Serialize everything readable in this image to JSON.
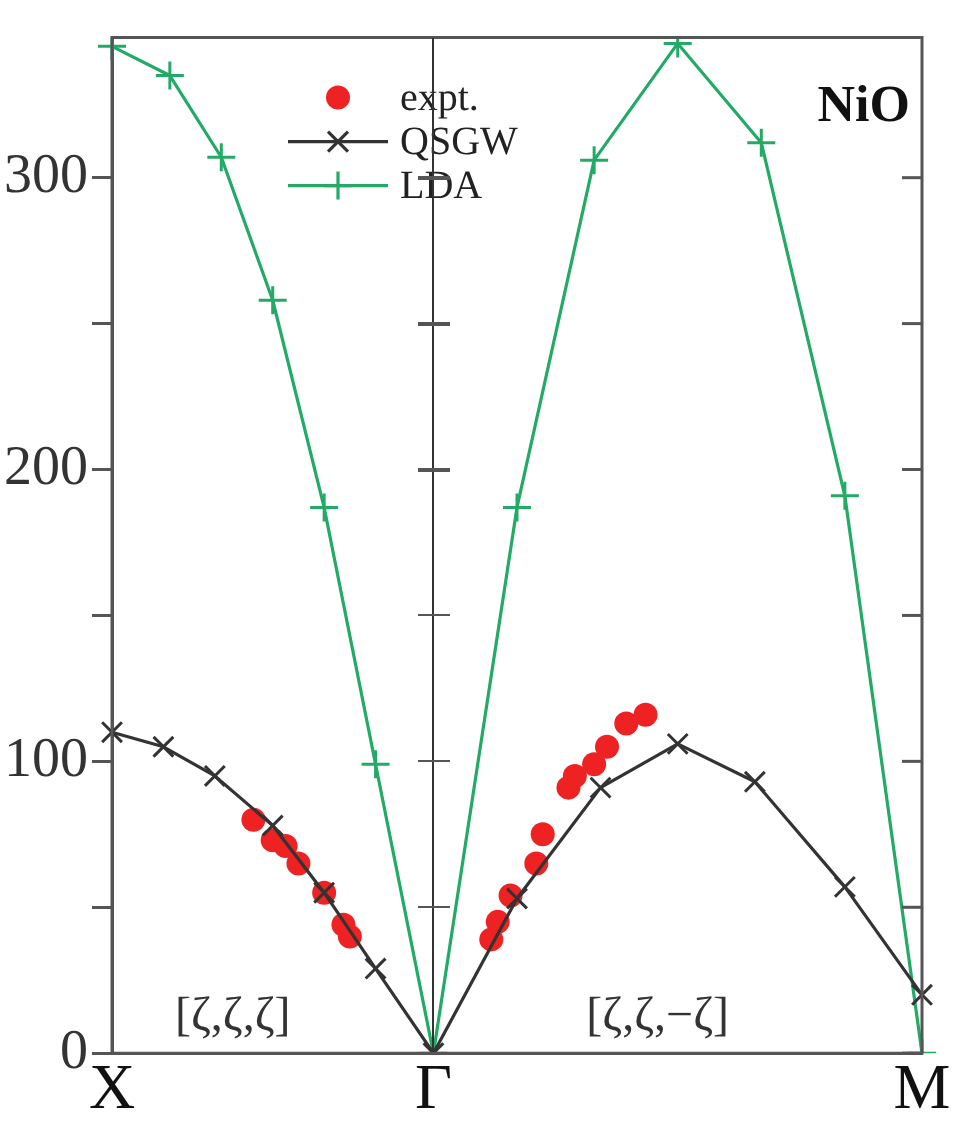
{
  "chart_data": {
    "type": "line",
    "title": "NiO",
    "annotations": [
      "[ζ,ζ,ζ]",
      "[ζ,ζ,−ζ]"
    ],
    "categories": [
      "X",
      null,
      null,
      null,
      null,
      null,
      null,
      null,
      null,
      null,
      null,
      null,
      null,
      null,
      null,
      null,
      null,
      null,
      null,
      null,
      null,
      null,
      null,
      null,
      null,
      null,
      null,
      null,
      null,
      null,
      null,
      null,
      null,
      null,
      null,
      null,
      null,
      null,
      null,
      null,
      null,
      null,
      null,
      null,
      null,
      null,
      null,
      null,
      null,
      null,
      "Γ",
      null,
      null,
      null,
      null,
      null,
      null,
      null,
      null,
      null,
      null,
      null,
      null,
      null,
      null,
      null,
      null,
      null,
      null,
      null,
      null,
      null,
      null,
      null,
      null,
      null,
      null,
      null,
      null,
      null,
      null,
      null,
      null,
      null,
      null,
      null,
      null,
      null,
      null,
      null,
      null,
      null,
      null,
      null,
      null,
      null,
      null,
      null,
      null,
      null,
      null,
      null,
      null,
      null,
      null,
      null,
      null,
      null,
      null,
      null,
      null,
      null,
      null,
      null,
      null,
      null,
      null,
      null,
      null,
      null,
      null,
      null,
      null,
      null,
      null,
      null,
      "M"
    ],
    "ylim": [
      0,
      348
    ],
    "yticks": [
      0,
      {
        "value": 50,
        "label": null
      },
      100,
      {
        "value": 150,
        "label": null
      },
      200,
      {
        "value": 250,
        "label": null
      },
      300
    ],
    "grid": false,
    "legend": "top left",
    "series": [
      {
        "name": "expt.",
        "type": "scatter",
        "marker": "circle",
        "color": "#ee2222",
        "values": [
          null,
          null,
          null,
          null,
          null,
          null,
          null,
          null,
          null,
          null,
          null,
          null,
          null,
          null,
          null,
          null,
          null,
          null,
          null,
          null,
          null,
          null,
          80,
          null,
          null,
          73,
          null,
          71,
          null,
          65,
          null,
          null,
          null,
          55,
          null,
          null,
          44,
          40,
          null,
          null,
          null,
          null,
          null,
          null,
          null,
          null,
          null,
          null,
          null,
          null,
          null,
          null,
          null,
          null,
          null,
          null,
          null,
          null,
          null,
          39,
          45,
          null,
          54,
          null,
          null,
          null,
          65,
          75,
          null,
          null,
          null,
          91,
          95,
          null,
          null,
          99,
          null,
          105,
          null,
          null,
          113,
          null,
          null,
          116,
          null,
          null,
          null,
          null,
          null,
          null,
          null,
          null,
          null,
          null,
          null,
          null,
          null,
          null,
          null,
          null,
          null,
          null,
          null,
          null,
          null,
          null,
          null,
          null,
          null,
          null,
          null,
          null,
          null,
          null,
          null,
          null,
          null,
          null,
          null,
          null,
          null,
          null,
          null,
          null,
          null,
          null,
          null
        ]
      },
      {
        "name": "QSGW",
        "type": "line",
        "marker": "x",
        "color": "#333333",
        "values": [
          110,
          null,
          null,
          null,
          null,
          null,
          null,
          null,
          105,
          null,
          null,
          null,
          null,
          null,
          null,
          null,
          95,
          null,
          null,
          null,
          null,
          null,
          null,
          null,
          null,
          78,
          null,
          null,
          null,
          null,
          null,
          null,
          null,
          55,
          null,
          null,
          null,
          null,
          null,
          null,
          null,
          29,
          null,
          null,
          null,
          null,
          null,
          null,
          null,
          null,
          0,
          null,
          null,
          null,
          null,
          null,
          null,
          null,
          null,
          null,
          null,
          null,
          null,
          53,
          null,
          null,
          null,
          null,
          null,
          null,
          null,
          null,
          null,
          null,
          null,
          null,
          91,
          null,
          null,
          null,
          null,
          null,
          null,
          null,
          null,
          null,
          null,
          null,
          106,
          null,
          null,
          null,
          null,
          null,
          null,
          null,
          null,
          null,
          null,
          null,
          93,
          null,
          null,
          null,
          null,
          null,
          null,
          null,
          null,
          null,
          null,
          null,
          null,
          null,
          57,
          null,
          null,
          null,
          null,
          null,
          null,
          null,
          null,
          null,
          null,
          null,
          20
        ]
      },
      {
        "name": "LDA",
        "type": "line",
        "marker": "cross",
        "color": "#22aa66",
        "values": [
          345,
          null,
          null,
          null,
          null,
          null,
          null,
          null,
          null,
          335,
          null,
          null,
          null,
          null,
          null,
          null,
          null,
          307,
          null,
          null,
          null,
          null,
          null,
          null,
          null,
          258,
          null,
          null,
          null,
          null,
          null,
          null,
          null,
          187,
          null,
          null,
          null,
          null,
          null,
          null,
          null,
          99,
          null,
          null,
          null,
          null,
          null,
          null,
          null,
          null,
          0,
          null,
          null,
          null,
          null,
          null,
          null,
          null,
          null,
          null,
          null,
          null,
          null,
          187,
          null,
          null,
          null,
          null,
          null,
          null,
          null,
          null,
          null,
          null,
          null,
          306,
          null,
          null,
          null,
          null,
          null,
          null,
          null,
          null,
          null,
          null,
          null,
          null,
          346,
          null,
          null,
          null,
          null,
          null,
          null,
          null,
          null,
          null,
          null,
          null,
          null,
          312,
          null,
          null,
          null,
          null,
          null,
          null,
          null,
          null,
          null,
          null,
          null,
          null,
          191,
          null,
          null,
          null,
          null,
          null,
          null,
          null,
          null,
          null,
          null,
          null,
          0
        ]
      }
    ]
  }
}
